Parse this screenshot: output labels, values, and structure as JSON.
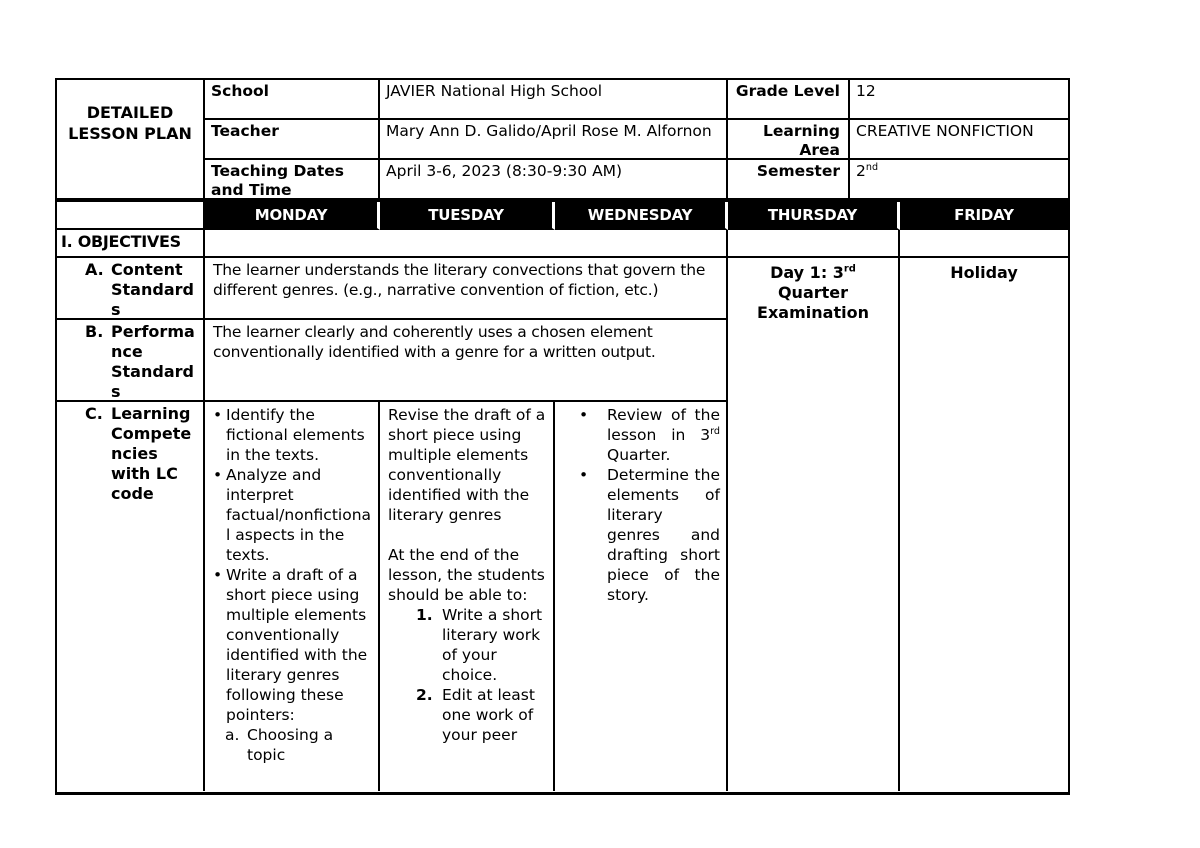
{
  "info": {
    "title": "DETAILED LESSON PLAN",
    "school_label": "School",
    "school_value": "JAVIER National High School",
    "teacher_label": "Teacher",
    "teacher_value": "Mary Ann D. Galido/April Rose M. Alfornon",
    "dates_label": "Teaching Dates and Time",
    "dates_value": "April 3-6, 2023 (8:30-9:30 AM)",
    "grade_label": "Grade Level",
    "grade_value": "12",
    "area_label": "Learning Area",
    "area_value": "CREATIVE NONFICTION",
    "semester_label": "Semester",
    "semester_value_base": "2",
    "semester_value_sup": "nd"
  },
  "days": [
    "MONDAY",
    "TUESDAY",
    "WEDNESDAY",
    "THURSDAY",
    "FRIDAY"
  ],
  "objectives_label": "I. OBJECTIVES",
  "markers": {
    "bullet": "•"
  },
  "sections": {
    "a": {
      "enum": "A.",
      "label": "Content Standards",
      "text": "The learner understands the literary convections that govern the different genres. (e.g., narrative convention of fiction, etc.)"
    },
    "b": {
      "enum": "B.",
      "label": "Performance Standards",
      "text": "The learner clearly and coherently uses a chosen element conventionally identified with a genre for a written output."
    },
    "c": {
      "enum": "C.",
      "label": "Learning Competencies with LC code",
      "monday": {
        "bullets": [
          "Identify the fictional elements in the texts.",
          "Analyze and interpret factual/nonfictional aspects in the texts.",
          "Write a draft of a short piece using multiple elements conventionally identified with the literary genres following these pointers:"
        ],
        "sub_marker": "a.",
        "sub_text": "Choosing a topic"
      },
      "tuesday": {
        "para1": "Revise the draft of a short piece using multiple elements conventionally identified with the literary genres",
        "para2": "At the end of the lesson, the students should be able to:",
        "items": [
          {
            "num": "1.",
            "text": "Write a short literary work of your choice."
          },
          {
            "num": "2.",
            "text": "Edit at least one work of your peer"
          }
        ]
      },
      "wednesday": {
        "bullet1_pre": "Review of the lesson in 3",
        "bullet1_sup": "rd",
        "bullet1_post": " Quarter.",
        "bullet2": "Determine the elements of literary genres and drafting short piece of the story."
      }
    }
  },
  "thursday_note": {
    "pre": "Day 1: 3",
    "sup": "rd",
    "post": " Quarter Examination"
  },
  "friday_note": "Holiday",
  "colors": {
    "banner_bg": "#000000",
    "banner_text": "#ffffff",
    "border": "#000000"
  }
}
